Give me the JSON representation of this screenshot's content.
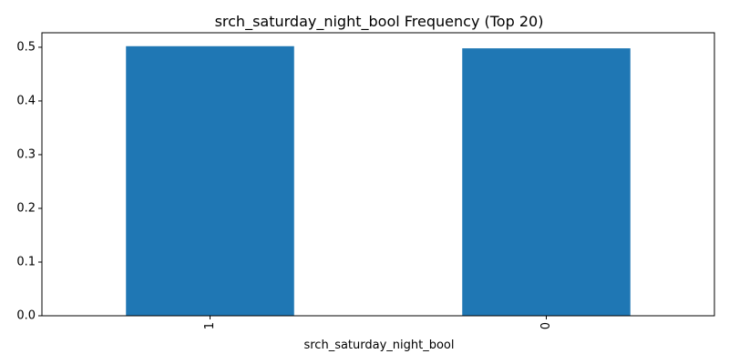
{
  "chart_data": {
    "type": "bar",
    "title": "srch_saturday_night_bool Frequency (Top 20)",
    "xlabel": "srch_saturday_night_bool",
    "ylabel": "",
    "categories": [
      "1",
      "0"
    ],
    "values": [
      0.502,
      0.498
    ],
    "ylim": [
      0,
      0.527
    ],
    "yticks": [
      0.0,
      0.1,
      0.2,
      0.3,
      0.4,
      0.5
    ],
    "ytick_labels": [
      "0.0",
      "0.1",
      "0.2",
      "0.3",
      "0.4",
      "0.5"
    ],
    "x_tick_rotation": "vertical",
    "bar_color": "#1f77b4",
    "grid": false,
    "legend": "none"
  }
}
